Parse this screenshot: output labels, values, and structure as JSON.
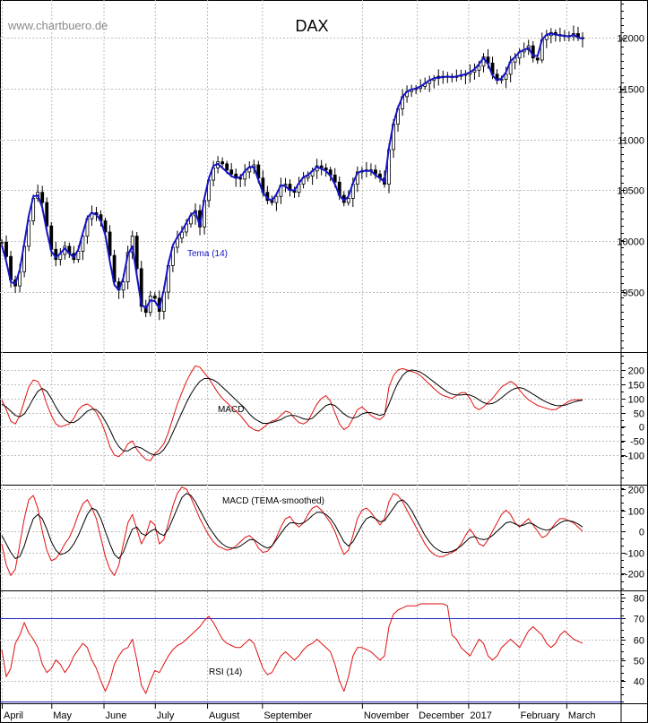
{
  "watermark": "www.chartbuero.de",
  "colors": {
    "price": "#000000",
    "tema": "#1414c8",
    "red": "#e01010",
    "black": "#000000",
    "grid": "#bdbdbd",
    "rsi_level": "#2020c0"
  },
  "chart_data": [
    {
      "type": "line",
      "title": "DAX",
      "series_label": "Tema (14)",
      "yticks": [
        9500,
        10000,
        10500,
        11000,
        11500,
        12000
      ],
      "ylim": [
        9250,
        12100
      ],
      "x": [
        0,
        5,
        10,
        15,
        20,
        25,
        30,
        35,
        40,
        45,
        50,
        55,
        60,
        65,
        70,
        75,
        80,
        85,
        90,
        95,
        100,
        105,
        110,
        115,
        120,
        125,
        130,
        135,
        140,
        145,
        150,
        155,
        160,
        165,
        170,
        175,
        180,
        185,
        190,
        195,
        200,
        205,
        210,
        215,
        220,
        225,
        230,
        235,
        240,
        245,
        250,
        255,
        260,
        265,
        270,
        275,
        280,
        285,
        290,
        295,
        300,
        305,
        310,
        315,
        320,
        325,
        330,
        335,
        340,
        345,
        350,
        355,
        360,
        365,
        370,
        375,
        380,
        385,
        390,
        395,
        400,
        405,
        410,
        415,
        420,
        425,
        430,
        435,
        440,
        445,
        450,
        455,
        460,
        465,
        470,
        475,
        480,
        485,
        490,
        495,
        500,
        505,
        510,
        515,
        520,
        525,
        530,
        535,
        540,
        545,
        550,
        555,
        560,
        565,
        570,
        575,
        580,
        585,
        590,
        595,
        600,
        605,
        610,
        615,
        620,
        625,
        630,
        635,
        640,
        645
      ],
      "series": [
        {
          "name": "Close",
          "values": [
            9990,
            9850,
            9620,
            9560,
            9700,
            9950,
            10200,
            10420,
            10480,
            10380,
            10150,
            9920,
            9820,
            9870,
            9950,
            9880,
            9820,
            9900,
            10050,
            10220,
            10280,
            10260,
            10200,
            10090,
            9860,
            9600,
            9520,
            9600,
            9890,
            10050,
            9730,
            9360,
            9300,
            9460,
            9440,
            9310,
            9500,
            9760,
            9940,
            10030,
            10090,
            10170,
            10250,
            10300,
            10140,
            10400,
            10600,
            10720,
            10780,
            10760,
            10700,
            10660,
            10620,
            10610,
            10680,
            10720,
            10750,
            10620,
            10480,
            10400,
            10380,
            10440,
            10550,
            10560,
            10500,
            10480,
            10560,
            10620,
            10640,
            10690,
            10740,
            10720,
            10700,
            10650,
            10580,
            10450,
            10380,
            10420,
            10560,
            10680,
            10690,
            10700,
            10700,
            10660,
            10620,
            10560,
            10900,
            11150,
            11300,
            11420,
            11470,
            11490,
            11500,
            11520,
            11550,
            11580,
            11600,
            11620,
            11610,
            11620,
            11610,
            11620,
            11630,
            11640,
            11660,
            11680,
            11720,
            11810,
            11750,
            11640,
            11580,
            11590,
            11640,
            11760,
            11800,
            11860,
            11880,
            11920,
            11800,
            11780,
            11980,
            12020,
            12050,
            12030,
            12020,
            12020,
            12010,
            12040,
            12000,
            11990
          ]
        },
        {
          "name": "Tema (14)",
          "values": [
            9960,
            9800,
            9600,
            9580,
            9720,
            9980,
            10250,
            10440,
            10450,
            10330,
            10100,
            9900,
            9840,
            9880,
            9930,
            9880,
            9840,
            9920,
            10080,
            10230,
            10280,
            10260,
            10200,
            10060,
            9800,
            9570,
            9520,
            9640,
            9870,
            9950,
            9660,
            9380,
            9340,
            9420,
            9410,
            9340,
            9520,
            9780,
            9960,
            10040,
            10100,
            10180,
            10260,
            10290,
            10150,
            10420,
            10620,
            10740,
            10760,
            10720,
            10680,
            10640,
            10620,
            10630,
            10690,
            10730,
            10730,
            10600,
            10480,
            10420,
            10400,
            10460,
            10550,
            10540,
            10500,
            10500,
            10570,
            10630,
            10650,
            10690,
            10730,
            10710,
            10690,
            10640,
            10560,
            10450,
            10400,
            10440,
            10570,
            10670,
            10690,
            10690,
            10690,
            10650,
            10620,
            10580,
            10920,
            11160,
            11310,
            11420,
            11470,
            11490,
            11500,
            11520,
            11550,
            11580,
            11600,
            11610,
            11610,
            11620,
            11610,
            11620,
            11630,
            11640,
            11660,
            11690,
            11740,
            11800,
            11740,
            11630,
            11580,
            11600,
            11660,
            11770,
            11810,
            11860,
            11880,
            11900,
            11820,
            11820,
            11980,
            12030,
            12040,
            12030,
            12020,
            12020,
            12010,
            12030,
            12000,
            11990
          ]
        }
      ]
    },
    {
      "type": "line",
      "series_label": "MACD",
      "yticks": [
        200,
        150,
        100,
        50,
        0,
        -50,
        -100
      ],
      "ylim": [
        -130,
        250
      ],
      "series": [
        {
          "name": "red",
          "values": [
            95,
            60,
            20,
            10,
            40,
            90,
            140,
            165,
            160,
            130,
            80,
            40,
            10,
            0,
            5,
            10,
            30,
            60,
            75,
            80,
            70,
            50,
            20,
            -20,
            -70,
            -100,
            -105,
            -90,
            -60,
            -50,
            -80,
            -100,
            -115,
            -120,
            -95,
            -80,
            -60,
            -20,
            30,
            80,
            120,
            160,
            190,
            215,
            210,
            190,
            170,
            145,
            120,
            100,
            85,
            70,
            55,
            40,
            20,
            0,
            -10,
            -15,
            -5,
            10,
            20,
            25,
            40,
            55,
            50,
            30,
            15,
            10,
            20,
            50,
            80,
            100,
            110,
            90,
            50,
            10,
            -10,
            0,
            30,
            60,
            70,
            55,
            40,
            30,
            25,
            40,
            140,
            180,
            200,
            205,
            200,
            195,
            190,
            180,
            165,
            150,
            135,
            120,
            110,
            105,
            100,
            110,
            120,
            120,
            100,
            70,
            60,
            70,
            85,
            100,
            120,
            140,
            150,
            160,
            150,
            130,
            110,
            95,
            85,
            75,
            70,
            65,
            60,
            60,
            70,
            80,
            90,
            95,
            95,
            95
          ]
        },
        {
          "name": "black",
          "values": [
            80,
            70,
            55,
            40,
            35,
            45,
            70,
            100,
            125,
            135,
            125,
            100,
            70,
            45,
            25,
            15,
            15,
            25,
            40,
            55,
            62,
            60,
            45,
            20,
            -10,
            -45,
            -70,
            -85,
            -85,
            -75,
            -70,
            -75,
            -85,
            -95,
            -100,
            -95,
            -80,
            -55,
            -20,
            15,
            50,
            85,
            115,
            140,
            160,
            170,
            170,
            165,
            155,
            140,
            125,
            110,
            95,
            80,
            65,
            45,
            30,
            20,
            12,
            12,
            15,
            20,
            25,
            35,
            40,
            40,
            35,
            28,
            25,
            30,
            45,
            60,
            75,
            80,
            75,
            60,
            45,
            35,
            30,
            35,
            45,
            50,
            50,
            45,
            40,
            45,
            80,
            120,
            155,
            180,
            195,
            200,
            198,
            192,
            182,
            170,
            158,
            145,
            133,
            122,
            115,
            112,
            112,
            114,
            112,
            105,
            95,
            85,
            80,
            82,
            90,
            102,
            115,
            127,
            135,
            138,
            134,
            125,
            115,
            105,
            95,
            87,
            80,
            75,
            74,
            76,
            81,
            87,
            91,
            94
          ]
        }
      ]
    },
    {
      "type": "line",
      "series_label": "MACD (TEMA-smoothed)",
      "yticks": [
        200,
        100,
        0,
        -100,
        -200
      ],
      "ylim": [
        -230,
        220
      ],
      "series": [
        {
          "name": "red",
          "values": [
            -60,
            -160,
            -210,
            -180,
            -60,
            60,
            150,
            170,
            110,
            0,
            -90,
            -140,
            -130,
            -100,
            -60,
            -30,
            20,
            80,
            130,
            150,
            110,
            60,
            -30,
            -120,
            -180,
            -210,
            -160,
            -60,
            40,
            80,
            10,
            -60,
            -20,
            50,
            30,
            -60,
            -40,
            40,
            120,
            180,
            210,
            200,
            160,
            110,
            60,
            20,
            -20,
            -50,
            -70,
            -80,
            -90,
            -85,
            -70,
            -50,
            -30,
            -20,
            -40,
            -80,
            -100,
            -95,
            -70,
            -30,
            20,
            60,
            70,
            40,
            20,
            40,
            80,
            110,
            120,
            100,
            70,
            40,
            0,
            -60,
            -110,
            -90,
            -20,
            60,
            100,
            110,
            90,
            60,
            30,
            60,
            140,
            180,
            170,
            140,
            100,
            60,
            20,
            -20,
            -60,
            -90,
            -110,
            -120,
            -120,
            -110,
            -100,
            -90,
            -60,
            -20,
            10,
            -20,
            -60,
            -70,
            -40,
            0,
            40,
            80,
            100,
            80,
            40,
            20,
            40,
            60,
            30,
            0,
            -30,
            -20,
            10,
            40,
            60,
            60,
            50,
            40,
            20,
            0
          ]
        },
        {
          "name": "black",
          "values": [
            -20,
            -60,
            -100,
            -130,
            -120,
            -70,
            0,
            60,
            80,
            60,
            10,
            -50,
            -90,
            -110,
            -105,
            -90,
            -60,
            -20,
            30,
            80,
            110,
            100,
            60,
            0,
            -60,
            -110,
            -130,
            -100,
            -40,
            10,
            20,
            -10,
            -20,
            0,
            10,
            -10,
            -20,
            10,
            60,
            110,
            160,
            180,
            170,
            140,
            100,
            60,
            20,
            -10,
            -40,
            -60,
            -75,
            -80,
            -80,
            -70,
            -55,
            -40,
            -40,
            -55,
            -70,
            -80,
            -70,
            -40,
            -10,
            20,
            40,
            40,
            35,
            40,
            55,
            75,
            90,
            90,
            80,
            60,
            30,
            -10,
            -50,
            -70,
            -50,
            -10,
            30,
            60,
            70,
            60,
            45,
            50,
            80,
            110,
            140,
            150,
            130,
            100,
            60,
            20,
            -20,
            -50,
            -75,
            -90,
            -100,
            -100,
            -95,
            -85,
            -70,
            -50,
            -30,
            -25,
            -35,
            -40,
            -35,
            -20,
            0,
            20,
            40,
            45,
            35,
            25,
            30,
            40,
            35,
            20,
            10,
            5,
            10,
            25,
            40,
            50,
            50,
            45,
            35,
            20
          ]
        }
      ]
    },
    {
      "type": "line",
      "series_label": "RSI (14)",
      "yticks": [
        80,
        70,
        60,
        50,
        40
      ],
      "ylim": [
        28,
        85
      ],
      "levels": [
        70,
        30
      ],
      "series": [
        {
          "name": "RSI",
          "values": [
            55,
            42,
            46,
            58,
            62,
            68,
            63,
            60,
            56,
            48,
            44,
            46,
            50,
            48,
            44,
            47,
            52,
            55,
            58,
            56,
            50,
            46,
            40,
            35,
            40,
            48,
            52,
            55,
            56,
            60,
            50,
            38,
            34,
            40,
            45,
            44,
            48,
            52,
            55,
            57,
            58,
            60,
            62,
            64,
            66,
            69,
            71,
            68,
            64,
            60,
            58,
            57,
            56,
            56,
            58,
            60,
            58,
            52,
            46,
            43,
            44,
            48,
            52,
            54,
            52,
            50,
            52,
            55,
            57,
            58,
            60,
            58,
            56,
            54,
            48,
            40,
            35,
            42,
            52,
            56,
            56,
            55,
            54,
            52,
            50,
            52,
            66,
            72,
            74,
            75,
            76,
            76,
            76,
            77,
            77,
            77,
            77,
            77,
            77,
            76,
            62,
            60,
            56,
            54,
            52,
            56,
            60,
            58,
            52,
            50,
            52,
            56,
            58,
            60,
            58,
            56,
            60,
            64,
            66,
            64,
            62,
            58,
            56,
            58,
            62,
            64,
            62,
            60,
            59,
            58
          ]
        }
      ]
    }
  ],
  "xaxis": {
    "months": [
      "April",
      "May",
      "June",
      "July",
      "August",
      "September",
      "November",
      "December",
      "2017",
      "February",
      "March"
    ],
    "month_x": [
      0,
      55,
      113,
      170,
      228,
      289,
      400,
      461,
      518,
      574,
      627
    ]
  }
}
